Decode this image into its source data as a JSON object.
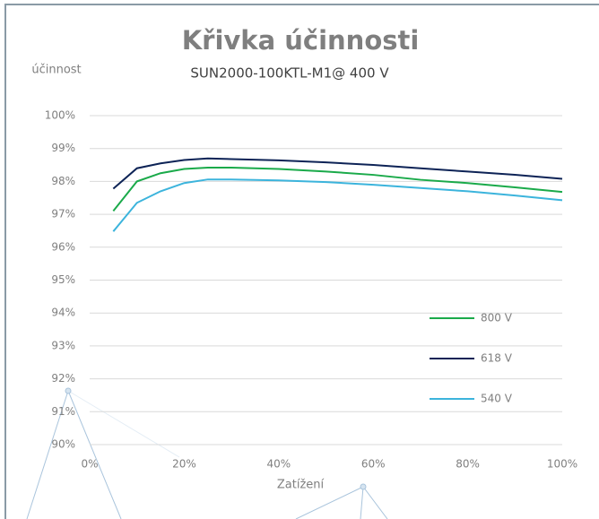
{
  "chart_data": {
    "type": "line",
    "title": "Křivka účinnosti",
    "subtitle": "SUN2000-100KTL-M1@ 400 V",
    "y_label": "účinnost",
    "x_label": "Zatížení",
    "x": [
      5,
      10,
      15,
      20,
      25,
      30,
      40,
      50,
      60,
      70,
      80,
      90,
      100
    ],
    "series": [
      {
        "name": "800 V",
        "color": "#1aaa4a",
        "values": [
          97.1,
          98.0,
          98.25,
          98.38,
          98.42,
          98.42,
          98.38,
          98.3,
          98.2,
          98.05,
          97.95,
          97.82,
          97.68
        ]
      },
      {
        "name": "618 V",
        "color": "#0d2356",
        "values": [
          97.78,
          98.4,
          98.55,
          98.65,
          98.7,
          98.68,
          98.64,
          98.58,
          98.5,
          98.4,
          98.3,
          98.2,
          98.08
        ]
      },
      {
        "name": "540 V",
        "color": "#3cb4dc",
        "values": [
          96.48,
          97.35,
          97.7,
          97.95,
          98.06,
          98.06,
          98.03,
          97.98,
          97.9,
          97.8,
          97.7,
          97.57,
          97.43
        ]
      }
    ],
    "xlim": [
      0,
      100
    ],
    "xticks": [
      {
        "value": 0,
        "label": "0%"
      },
      {
        "value": 20,
        "label": "20%"
      },
      {
        "value": 40,
        "label": "40%"
      },
      {
        "value": 60,
        "label": "60%"
      },
      {
        "value": 80,
        "label": "80%"
      },
      {
        "value": 100,
        "label": "100%"
      }
    ],
    "ylim": [
      90,
      100
    ],
    "yticks": [
      {
        "value": 90,
        "label": "90%"
      },
      {
        "value": 91,
        "label": "91%"
      },
      {
        "value": 92,
        "label": "92%"
      },
      {
        "value": 93,
        "label": "93%"
      },
      {
        "value": 94,
        "label": "94%"
      },
      {
        "value": 95,
        "label": "95%"
      },
      {
        "value": 96,
        "label": "96%"
      },
      {
        "value": 97,
        "label": "97%"
      },
      {
        "value": 98,
        "label": "98%"
      },
      {
        "value": 99,
        "label": "99%"
      },
      {
        "value": 100,
        "label": "100%"
      }
    ],
    "grid": true,
    "legend": "right"
  }
}
